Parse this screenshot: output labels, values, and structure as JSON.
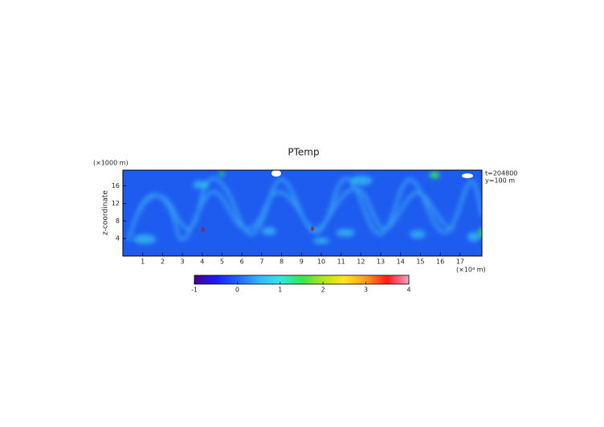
{
  "chart_data": {
    "type": "heatmap",
    "title": "PTemp",
    "ylabel": "z-coordinate",
    "yunit": "(×1000 m)",
    "xunit": "(×10⁴ m)",
    "annotations": [
      "t=204800",
      "y=100 m"
    ],
    "xlim": [
      0,
      18.1
    ],
    "xticks": [
      1,
      2,
      3,
      4,
      5,
      6,
      7,
      8,
      9,
      10,
      11,
      12,
      13,
      14,
      15,
      16,
      17
    ],
    "ylim": [
      0,
      19.6
    ],
    "yticks": [
      4,
      8,
      12,
      16
    ],
    "clim": [
      -1,
      4
    ],
    "cticks": [
      -1,
      0,
      1,
      2,
      3,
      4
    ],
    "colormap": [
      "#4a0088",
      "#1a1aff",
      "#1e64ff",
      "#33b5ff",
      "#33e6e6",
      "#33e64d",
      "#b3e61a",
      "#ffe61a",
      "#ff9a1a",
      "#ff1a1a",
      "#ffa0c8"
    ]
  }
}
